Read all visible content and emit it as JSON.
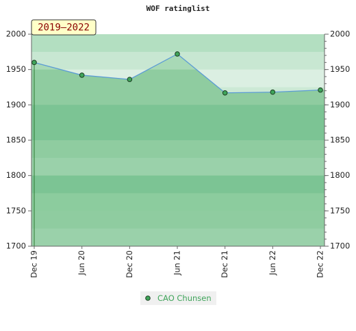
{
  "chart_data": {
    "type": "line",
    "title": "WOF ratinglist",
    "badge": "2019–2022",
    "categories": [
      "Dec 19",
      "Jun 20",
      "Dec 20",
      "Jun 21",
      "Dec 21",
      "Jun 22",
      "Dec 22"
    ],
    "series": [
      {
        "name": "CAO Chunsen",
        "color": "#5b9bd5",
        "marker_color": "#3fa45a",
        "values": [
          1960,
          1942,
          1936,
          1972,
          1917,
          1918,
          1921
        ]
      }
    ],
    "ylim": [
      1700,
      2000
    ],
    "yticks": [
      1700,
      1750,
      1800,
      1850,
      1900,
      1950,
      2000
    ]
  }
}
